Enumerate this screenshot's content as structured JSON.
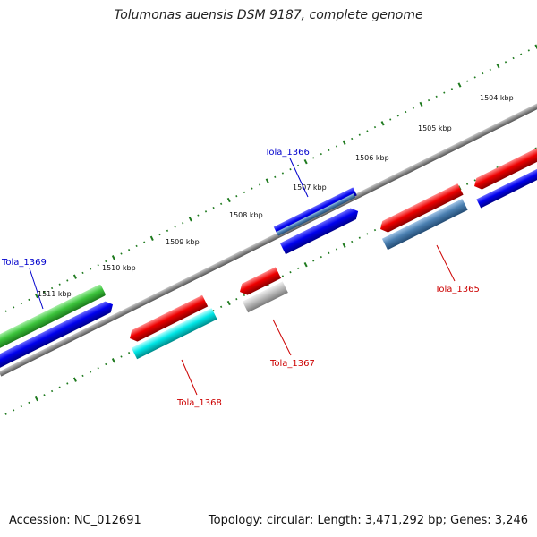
{
  "title": "Tolumonas auensis DSM 9187, complete genome",
  "footer": {
    "accession": "Accession: NC_012691",
    "summary": "Topology: circular; Length: 3,471,292 bp; Genes: 3,246"
  },
  "colors": {
    "backbone": "#8c8c8c",
    "tick": "#1e7a1e",
    "blue": "#0000dd",
    "red": "#ee0000",
    "green": "#3cc43c",
    "cyan": "#00e6e6",
    "steelblue": "#4a7fb0",
    "gray": "#b4b4b4",
    "label_blue": "#0000cc",
    "label_red": "#cc0000"
  },
  "kbp_labels": [
    "1504 kbp",
    "1505 kbp",
    "1506 kbp",
    "1507 kbp",
    "1508 kbp",
    "1509 kbp",
    "1510 kbp",
    "1511 kbp"
  ],
  "gene_labels": {
    "tola_1369": "Tola_1369",
    "tola_1368": "Tola_1368",
    "tola_1367": "Tola_1367",
    "tola_1366": "Tola_1366",
    "tola_1365": "Tola_1365"
  }
}
